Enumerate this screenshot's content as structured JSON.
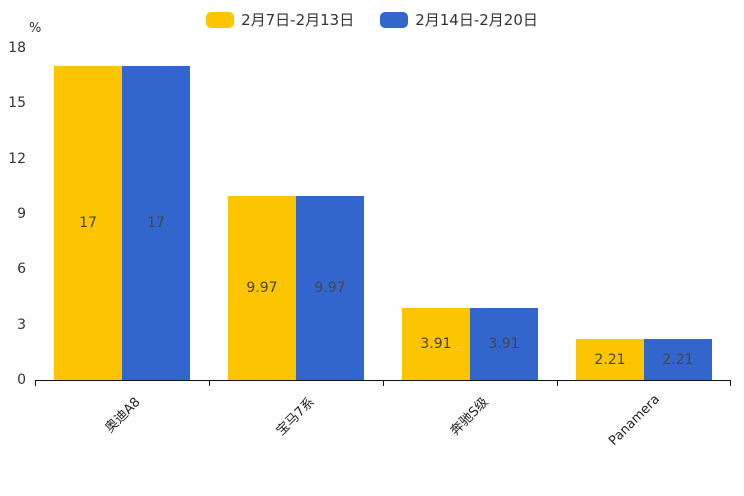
{
  "chart_data": {
    "type": "bar",
    "title": "",
    "categories": [
      "奥迪A8",
      "宝马7系",
      "奔驰S级",
      "Panamera"
    ],
    "series": [
      {
        "name": "2月7日-2月13日",
        "color": "#FDC500",
        "values": [
          17,
          9.97,
          3.91,
          2.21
        ],
        "labels": [
          "17",
          "9.97",
          "3.91",
          "2.21"
        ]
      },
      {
        "name": "2月14日-2月20日",
        "color": "#3366CC",
        "values": [
          17,
          9.97,
          3.91,
          2.21
        ],
        "labels": [
          "17",
          "9.97",
          "3.91",
          "2.21"
        ]
      }
    ],
    "xlabel": "",
    "ylabel": "%",
    "ylim": [
      0,
      18
    ],
    "yticks": [
      0,
      3,
      6,
      9,
      12,
      15,
      18
    ],
    "grid": false,
    "legend_position": "top",
    "bar_value_labels": "inside-center",
    "x_label_rotation_deg": 45
  }
}
